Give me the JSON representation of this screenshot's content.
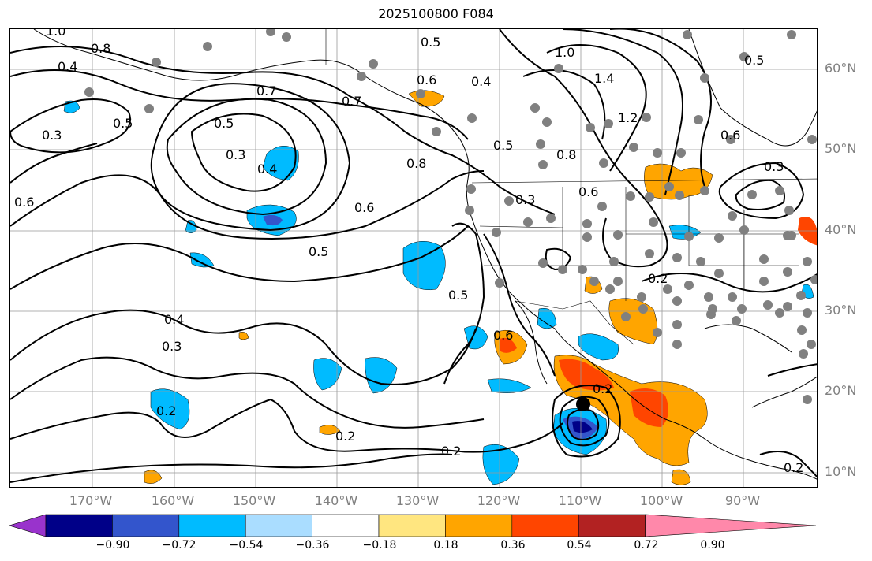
{
  "title": "2025100800 F084",
  "lon_labels": [
    "170°W",
    "160°W",
    "150°W",
    "140°W",
    "130°W",
    "120°W",
    "110°W",
    "100°W",
    "90°W"
  ],
  "lat_labels": [
    "60°N",
    "50°N",
    "40°N",
    "30°N",
    "20°N",
    "10°N"
  ],
  "contour_labels": [
    "1.0",
    "0.8",
    "0.4",
    "0.3",
    "0.5",
    "0.6",
    "0.7",
    "0.5",
    "0.3",
    "0.4",
    "0.7",
    "0.8",
    "0.6",
    "0.5",
    "0.4",
    "0.3",
    "0.2",
    "0.2",
    "0.5",
    "0.6",
    "0.2",
    "0.3",
    "0.5",
    "0.4",
    "1.0",
    "1.4",
    "1.2",
    "0.8",
    "0.6",
    "0.5",
    "0.6",
    "0.3",
    "0.2",
    "0.2",
    "0.5",
    "0.6",
    "0.2"
  ],
  "colorbar": {
    "ticks": [
      "−0.90",
      "−0.72",
      "−0.54",
      "−0.36",
      "−0.18",
      "0.18",
      "0.36",
      "0.54",
      "0.72",
      "0.90"
    ],
    "colors": [
      "#9933cc",
      "#000088",
      "#3355cc",
      "#00bbff",
      "#aaddff",
      "#ffffff",
      "#ffe680",
      "#ffa500",
      "#ff4500",
      "#b22222",
      "#ff88aa"
    ]
  }
}
